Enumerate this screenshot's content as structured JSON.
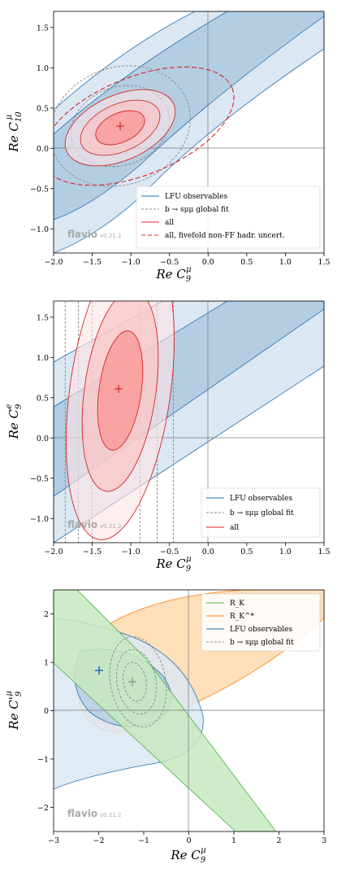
{
  "watermark": {
    "brand": "flavio",
    "version": "v0.21.2"
  },
  "colors": {
    "blue": "#2a6fb0",
    "blue_fill1": "#b3cde3",
    "blue_fill2": "#dbe7f2",
    "red": "#d62728",
    "red_fill": "#f9a3a3",
    "grey": "#888888",
    "green": "#4daf4a",
    "green_fill": "#c7e9c0",
    "orange": "#ff7f0e",
    "orange_fill": "#fdd7a8"
  },
  "chart_data": [
    {
      "type": "contour",
      "xlabel": "Re C_9^μ",
      "ylabel": "Re C_10^μ",
      "xlim": [
        -2.0,
        1.5
      ],
      "ylim": [
        -1.3,
        1.7
      ],
      "xticks": [
        "−2.0",
        "−1.5",
        "−1.0",
        "−0.5",
        "0.0",
        "0.5",
        "1.0",
        "1.5"
      ],
      "yticks": [
        "−1.0",
        "−0.5",
        "0.0",
        "0.5",
        "1.0",
        "1.5"
      ],
      "legend_position": "lower-right",
      "legend": [
        "LFU observables",
        "b → sμμ global fit",
        "all",
        "all, fivefold non-FF hadr. uncert."
      ],
      "best_fit_point": {
        "x": -1.15,
        "y": 0.28
      },
      "series": [
        {
          "name": "LFU observables",
          "style": "blue band",
          "sigma_levels": 2
        },
        {
          "name": "b → sμμ global fit",
          "style": "grey dashed contours",
          "center": [
            -1.15,
            0.28
          ]
        },
        {
          "name": "all",
          "style": "red filled contours",
          "center": [
            -1.15,
            0.28
          ]
        },
        {
          "name": "all, fivefold non-FF hadr. uncert.",
          "style": "red dashed contour"
        }
      ]
    },
    {
      "type": "contour",
      "xlabel": "Re C_9^μ",
      "ylabel": "Re C_9^e",
      "xlim": [
        -2.0,
        1.5
      ],
      "ylim": [
        -1.3,
        1.7
      ],
      "xticks": [
        "−2.0",
        "−1.5",
        "−1.0",
        "−0.5",
        "0.0",
        "0.5",
        "1.0",
        "1.5"
      ],
      "yticks": [
        "−1.0",
        "−0.5",
        "0.0",
        "0.5",
        "1.0",
        "1.5"
      ],
      "legend_position": "lower-right",
      "legend": [
        "LFU observables",
        "b → sμμ global fit",
        "all"
      ],
      "best_fit_point": {
        "x": -1.15,
        "y": 0.6
      },
      "global_fit_vertical_lines": [
        -1.85,
        -1.68,
        -1.5,
        -0.88,
        -0.66,
        -0.45
      ]
    },
    {
      "type": "contour",
      "xlabel": "Re C_9^μ",
      "ylabel": "Re C'_9^μ",
      "xlim": [
        -3,
        3
      ],
      "ylim": [
        -2.5,
        2.5
      ],
      "xticks": [
        "−3",
        "−2",
        "−1",
        "0",
        "1",
        "2",
        "3"
      ],
      "yticks": [
        "−2",
        "−1",
        "0",
        "1",
        "2"
      ],
      "legend_position": "upper-right",
      "legend": [
        "R_K",
        "R_K^*",
        "LFU observables",
        "b → sμμ global fit"
      ],
      "best_fit_points": [
        {
          "x": -2.0,
          "y": 0.83
        },
        {
          "x": -1.25,
          "y": 0.6
        }
      ]
    }
  ]
}
